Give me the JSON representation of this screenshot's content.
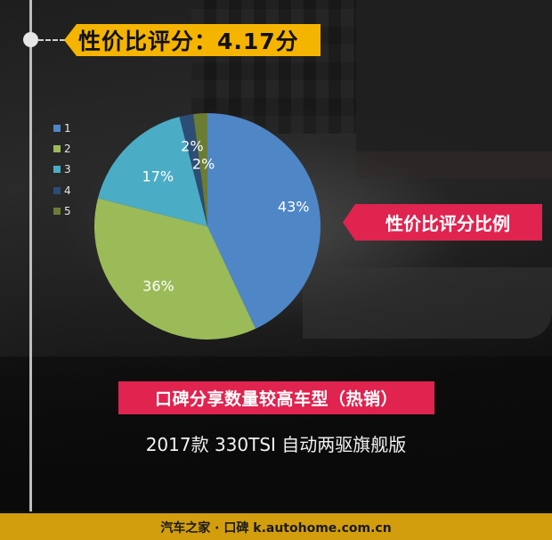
{
  "header": {
    "score_banner": "性价比评分：4.17分",
    "score_value": "4.17"
  },
  "banners": {
    "ratio_label": "性价比评分比例",
    "hot_label": "口碑分享数量较高车型（热销）"
  },
  "model": {
    "name": "2017款 330TSI 自动两驱旗舰版"
  },
  "footer": {
    "text": "汽车之家 · 口碑  k.autohome.com.cn"
  },
  "legend": [
    {
      "label": "1",
      "color": "#4f86c6"
    },
    {
      "label": "2",
      "color": "#9bbb59"
    },
    {
      "label": "3",
      "color": "#4bacc6"
    },
    {
      "label": "4",
      "color": "#2c4d75"
    },
    {
      "label": "5",
      "color": "#6b7c35"
    }
  ],
  "colors": {
    "yellow_banner": "#f4b400",
    "red_banner": "#e0234f",
    "footer_bg": "#d29e0d"
  },
  "chart_data": {
    "type": "pie",
    "title": "性价比评分比例",
    "categories": [
      "1",
      "2",
      "3",
      "4",
      "5"
    ],
    "values": [
      43,
      36,
      17,
      2,
      2
    ],
    "labels": [
      "43%",
      "36%",
      "17%",
      "2%",
      "2%"
    ],
    "colors": [
      "#4f86c6",
      "#9bbb59",
      "#4bacc6",
      "#2c4d75",
      "#6b7c35"
    ],
    "start_angle": "12 o'clock",
    "direction": "clockwise",
    "legend_position": "left"
  }
}
